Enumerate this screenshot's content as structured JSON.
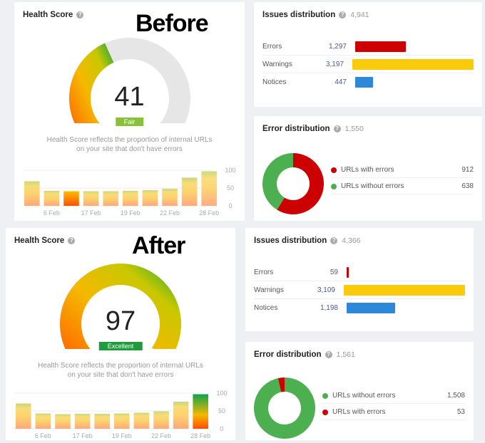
{
  "panels": [
    {
      "label": "Before",
      "health": {
        "title": "Health Score",
        "score": "41",
        "score_value": 41,
        "grade": "Fair",
        "grade_color": "#8ac13a",
        "description": "Health Score reflects the proportion of internal URLs on your site that don't have errors",
        "chart": {
          "type": "bar",
          "x_labels": [
            "6 Feb",
            "17 Feb",
            "19 Feb",
            "22 Feb",
            "28 Feb"
          ],
          "y_ticks": [
            "100",
            "50",
            "0"
          ],
          "ylim": [
            0,
            100
          ],
          "values": [
            69,
            42,
            41,
            41,
            41,
            42,
            44,
            48,
            79,
            97
          ],
          "highlight_index": 2
        }
      },
      "issues": {
        "title": "Issues distribution",
        "total": "4,941",
        "rows": [
          {
            "label": "Errors",
            "value": "1,297",
            "n": 1297,
            "color": "#cc0000"
          },
          {
            "label": "Warnings",
            "value": "3,197",
            "n": 3197,
            "color": "#f9cb0a"
          },
          {
            "label": "Notices",
            "value": "447",
            "n": 447,
            "color": "#2e88da"
          }
        ]
      },
      "errors": {
        "title": "Error distribution",
        "total": "1,550",
        "rows": [
          {
            "label": "URLs with errors",
            "value": "912",
            "n": 912,
            "color": "#cc0000"
          },
          {
            "label": "URLs without errors",
            "value": "638",
            "n": 638,
            "color": "#4caf50"
          }
        ]
      }
    },
    {
      "label": "After",
      "health": {
        "title": "Health Score",
        "score": "97",
        "score_value": 97,
        "grade": "Excellent",
        "grade_color": "#1f9a3e",
        "description": "Health Score reflects the proportion of internal URLs on your site that don't have errors",
        "chart": {
          "type": "bar",
          "x_labels": [
            "6 Feb",
            "17 Feb",
            "19 Feb",
            "22 Feb",
            "28 Feb"
          ],
          "y_ticks": [
            "100",
            "50",
            "0"
          ],
          "ylim": [
            0,
            100
          ],
          "values": [
            71,
            43,
            41,
            42,
            42,
            43,
            45,
            49,
            76,
            97
          ],
          "highlight_index": 9
        }
      },
      "issues": {
        "title": "Issues distribution",
        "total": "4,366",
        "rows": [
          {
            "label": "Errors",
            "value": "59",
            "n": 59,
            "color": "#cc0000"
          },
          {
            "label": "Warnings",
            "value": "3,109",
            "n": 3109,
            "color": "#f9cb0a"
          },
          {
            "label": "Notices",
            "value": "1,198",
            "n": 1198,
            "color": "#2e88da"
          }
        ]
      },
      "errors": {
        "title": "Error distribution",
        "total": "1,561",
        "rows": [
          {
            "label": "URLs without errors",
            "value": "1,508",
            "n": 1508,
            "color": "#4caf50"
          },
          {
            "label": "URLs with errors",
            "value": "53",
            "n": 53,
            "color": "#cc0000"
          }
        ]
      }
    }
  ]
}
